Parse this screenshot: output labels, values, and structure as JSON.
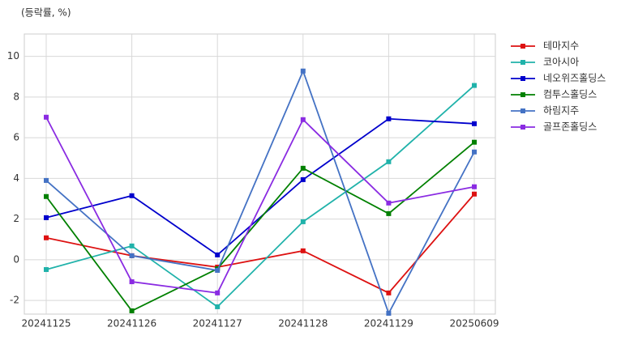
{
  "chart_data": {
    "type": "line",
    "y_label": "(등락률, %)",
    "categories": [
      "20241125",
      "20241126",
      "20241127",
      "20241128",
      "20241129",
      "20250609"
    ],
    "series": [
      {
        "name": "테마지수",
        "color": "#dd1111",
        "values": [
          1.08,
          0.2,
          -0.36,
          0.44,
          -1.63,
          3.23
        ]
      },
      {
        "name": "코아시아",
        "color": "#20b2aa",
        "values": [
          -0.48,
          0.68,
          -2.31,
          1.87,
          4.82,
          8.57
        ]
      },
      {
        "name": "네오위즈홀딩스",
        "color": "#0000cc",
        "values": [
          2.07,
          3.15,
          0.24,
          3.94,
          6.93,
          6.69
        ]
      },
      {
        "name": "컴투스홀딩스",
        "color": "#008000",
        "values": [
          3.11,
          -2.51,
          -0.44,
          4.5,
          2.27,
          5.78
        ]
      },
      {
        "name": "하림지주",
        "color": "#4472c4",
        "values": [
          3.9,
          0.2,
          -0.52,
          9.28,
          -2.63,
          5.3
        ]
      },
      {
        "name": "골프존홀딩스",
        "color": "#8a2be2",
        "values": [
          7.01,
          -1.08,
          -1.63,
          6.89,
          2.79,
          3.59
        ]
      }
    ],
    "ylim": [
      -2.67,
      11.1
    ],
    "yticks": [
      -2,
      0,
      2,
      4,
      6,
      8,
      10
    ],
    "grid": true,
    "legend": "upper right outside"
  }
}
